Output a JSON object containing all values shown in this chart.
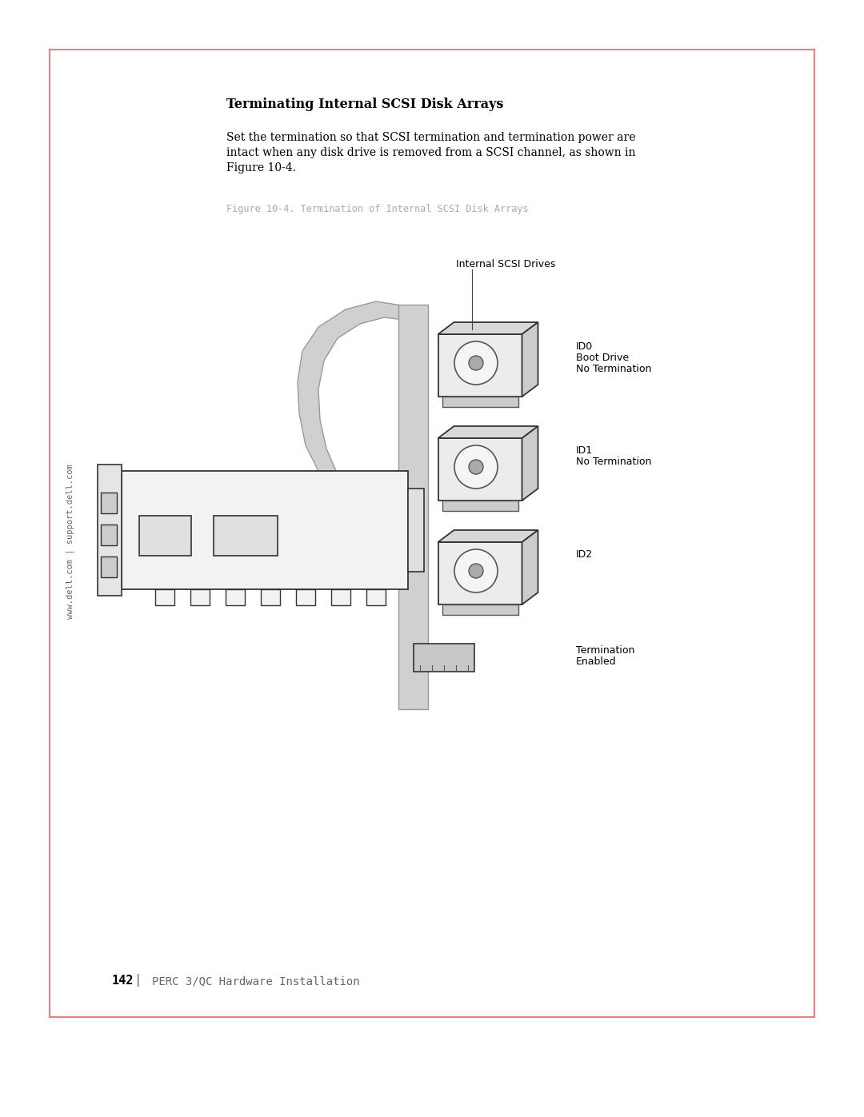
{
  "page_bg": "#ffffff",
  "border_color": "#e88080",
  "sidebar_text": "www.dell.com | support.dell.com",
  "section_title": "Terminating Internal SCSI Disk Arrays",
  "body_text_lines": [
    "Set the termination so that SCSI termination and termination power are",
    "intact when any disk drive is removed from a SCSI channel, as shown in",
    "Figure 10-4."
  ],
  "figure_caption": "Figure 10-4. Termination of Internal SCSI Disk Arrays",
  "drives_label": "Internal SCSI Drives",
  "label_id0": [
    "ID0",
    "Boot Drive",
    "No Termination"
  ],
  "label_id1": [
    "ID1",
    "No Termination"
  ],
  "label_id2": [
    "ID2"
  ],
  "termination_label": [
    "Termination",
    "Enabled"
  ],
  "footer_page": "142",
  "footer_text": "PERC 3/QC Hardware Installation",
  "text_color": "#000000",
  "gray_text": "#aaaaaa",
  "ribbon_fill": "#d0d0d0",
  "ribbon_edge": "#999999",
  "card_fill": "#f2f2f2",
  "card_edge": "#333333",
  "drive_fill": "#ececec",
  "drive_top": "#d8d8d8",
  "drive_side": "#cccccc"
}
